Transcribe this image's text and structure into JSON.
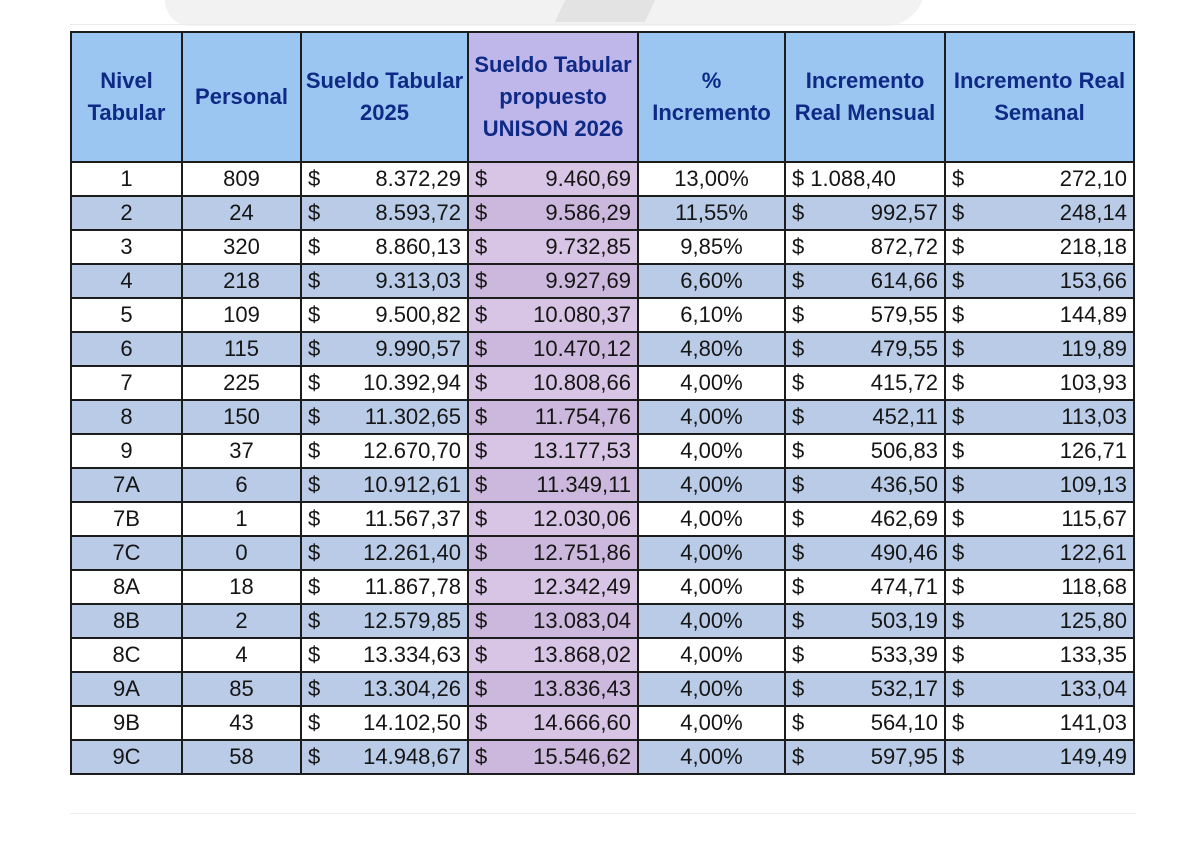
{
  "columns": [
    "Nivel Tabular",
    "Personal",
    "Sueldo Tabular 2025",
    "Sueldo Tabular propuesto UNISON 2026",
    "% Incremento",
    "Incremento Real Mensual",
    "Incremento Real Semanal"
  ],
  "currency": "$",
  "colors": {
    "header": "#9cc6f2",
    "header_text": "#0e2a85",
    "row_alt": "#b9cbe6",
    "proposed_col": "#d8c4e4"
  },
  "rows": [
    {
      "nivel": "1",
      "personal": "809",
      "sueldo_2025": "8.372,29",
      "sueldo_2026": "9.460,69",
      "pct": "13,00%",
      "mensual": "1.088,40",
      "semanal": "272,10"
    },
    {
      "nivel": "2",
      "personal": "24",
      "sueldo_2025": "8.593,72",
      "sueldo_2026": "9.586,29",
      "pct": "11,55%",
      "mensual": "992,57",
      "semanal": "248,14"
    },
    {
      "nivel": "3",
      "personal": "320",
      "sueldo_2025": "8.860,13",
      "sueldo_2026": "9.732,85",
      "pct": "9,85%",
      "mensual": "872,72",
      "semanal": "218,18"
    },
    {
      "nivel": "4",
      "personal": "218",
      "sueldo_2025": "9.313,03",
      "sueldo_2026": "9.927,69",
      "pct": "6,60%",
      "mensual": "614,66",
      "semanal": "153,66"
    },
    {
      "nivel": "5",
      "personal": "109",
      "sueldo_2025": "9.500,82",
      "sueldo_2026": "10.080,37",
      "pct": "6,10%",
      "mensual": "579,55",
      "semanal": "144,89"
    },
    {
      "nivel": "6",
      "personal": "115",
      "sueldo_2025": "9.990,57",
      "sueldo_2026": "10.470,12",
      "pct": "4,80%",
      "mensual": "479,55",
      "semanal": "119,89"
    },
    {
      "nivel": "7",
      "personal": "225",
      "sueldo_2025": "10.392,94",
      "sueldo_2026": "10.808,66",
      "pct": "4,00%",
      "mensual": "415,72",
      "semanal": "103,93"
    },
    {
      "nivel": "8",
      "personal": "150",
      "sueldo_2025": "11.302,65",
      "sueldo_2026": "11.754,76",
      "pct": "4,00%",
      "mensual": "452,11",
      "semanal": "113,03"
    },
    {
      "nivel": "9",
      "personal": "37",
      "sueldo_2025": "12.670,70",
      "sueldo_2026": "13.177,53",
      "pct": "4,00%",
      "mensual": "506,83",
      "semanal": "126,71"
    },
    {
      "nivel": "7A",
      "personal": "6",
      "sueldo_2025": "10.912,61",
      "sueldo_2026": "11.349,11",
      "pct": "4,00%",
      "mensual": "436,50",
      "semanal": "109,13"
    },
    {
      "nivel": "7B",
      "personal": "1",
      "sueldo_2025": "11.567,37",
      "sueldo_2026": "12.030,06",
      "pct": "4,00%",
      "mensual": "462,69",
      "semanal": "115,67"
    },
    {
      "nivel": "7C",
      "personal": "0",
      "sueldo_2025": "12.261,40",
      "sueldo_2026": "12.751,86",
      "pct": "4,00%",
      "mensual": "490,46",
      "semanal": "122,61"
    },
    {
      "nivel": "8A",
      "personal": "18",
      "sueldo_2025": "11.867,78",
      "sueldo_2026": "12.342,49",
      "pct": "4,00%",
      "mensual": "474,71",
      "semanal": "118,68"
    },
    {
      "nivel": "8B",
      "personal": "2",
      "sueldo_2025": "12.579,85",
      "sueldo_2026": "13.083,04",
      "pct": "4,00%",
      "mensual": "503,19",
      "semanal": "125,80"
    },
    {
      "nivel": "8C",
      "personal": "4",
      "sueldo_2025": "13.334,63",
      "sueldo_2026": "13.868,02",
      "pct": "4,00%",
      "mensual": "533,39",
      "semanal": "133,35"
    },
    {
      "nivel": "9A",
      "personal": "85",
      "sueldo_2025": "13.304,26",
      "sueldo_2026": "13.836,43",
      "pct": "4,00%",
      "mensual": "532,17",
      "semanal": "133,04"
    },
    {
      "nivel": "9B",
      "personal": "43",
      "sueldo_2025": "14.102,50",
      "sueldo_2026": "14.666,60",
      "pct": "4,00%",
      "mensual": "564,10",
      "semanal": "141,03"
    },
    {
      "nivel": "9C",
      "personal": "58",
      "sueldo_2025": "14.948,67",
      "sueldo_2026": "15.546,62",
      "pct": "4,00%",
      "mensual": "597,95",
      "semanal": "149,49"
    }
  ]
}
